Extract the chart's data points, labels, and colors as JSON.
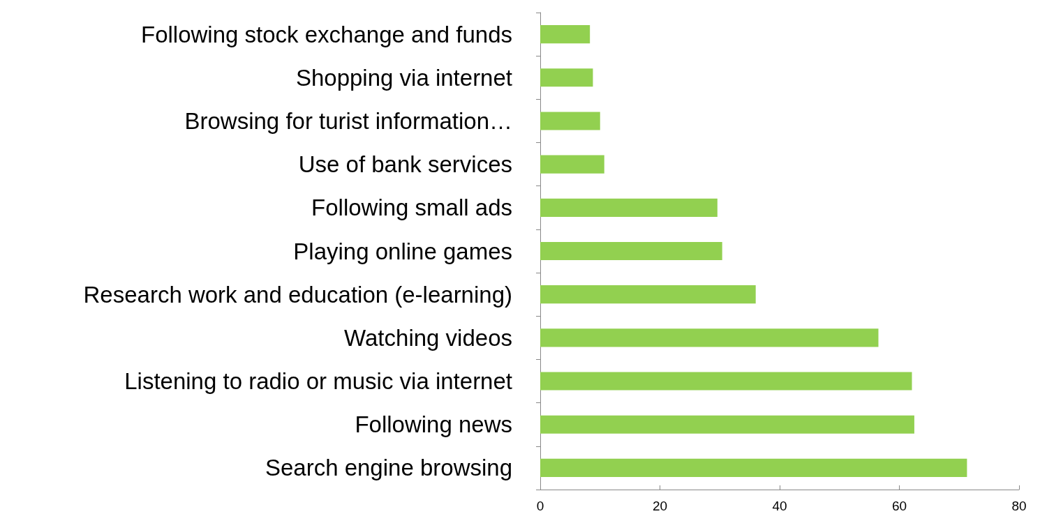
{
  "chart_data": {
    "type": "bar",
    "orientation": "horizontal",
    "categories": [
      "Following stock exchange and funds",
      "Shopping via internet",
      "Browsing for turist information…",
      "Use of bank services",
      "Following small ads",
      "Playing online games",
      "Research work and education (e-learning)",
      "Watching videos",
      "Listening to radio or music via internet",
      "Following news",
      "Search engine browsing"
    ],
    "values": [
      8.3,
      8.8,
      10.0,
      10.7,
      29.6,
      30.4,
      36.0,
      56.5,
      62.1,
      62.5,
      71.3
    ],
    "color": "#92d050",
    "xlim": [
      0,
      80
    ],
    "xticks": [
      0,
      20,
      40,
      60,
      80
    ],
    "grid": false
  }
}
